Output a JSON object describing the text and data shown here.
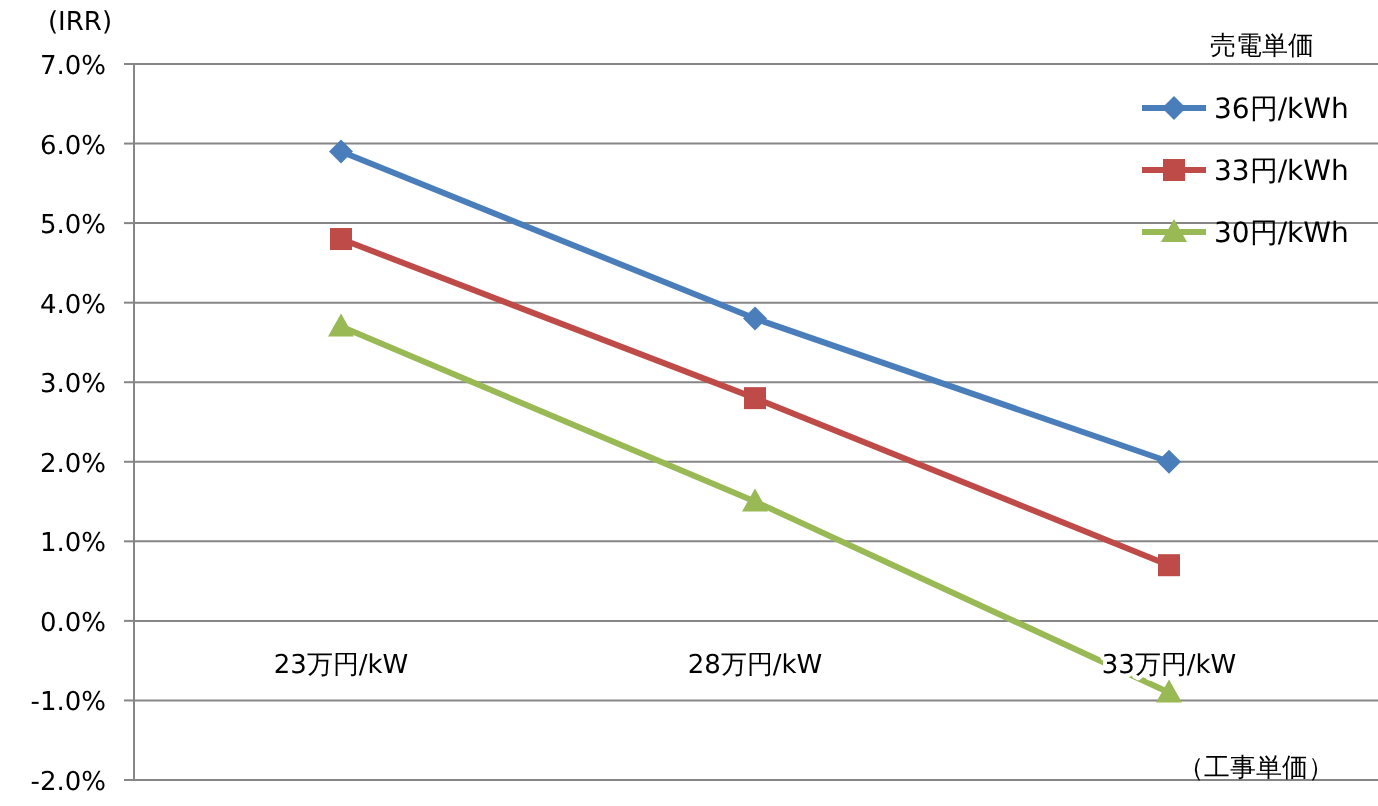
{
  "chart_data": {
    "type": "line",
    "ylabel": "(IRR)",
    "xlabel": "（工事単価）",
    "legend_title": "売電単価",
    "categories": [
      "23万円/kW",
      "28万円/kW",
      "33万円/kW"
    ],
    "series": [
      {
        "name": "36円/kWh",
        "color": "#4a7ebb",
        "marker": "diamond",
        "values": [
          5.9,
          3.8,
          2.0
        ]
      },
      {
        "name": "33円/kWh",
        "color": "#be4b48",
        "marker": "square",
        "values": [
          4.8,
          2.8,
          0.7
        ]
      },
      {
        "name": "30円/kWh",
        "color": "#98b954",
        "marker": "triangle",
        "values": [
          3.7,
          1.5,
          -0.9
        ]
      }
    ],
    "ylim": [
      -2,
      7
    ],
    "yticks": [
      {
        "value": -2,
        "label": "-2.0%"
      },
      {
        "value": -1,
        "label": "-1.0%"
      },
      {
        "value": 0,
        "label": "0.0%"
      },
      {
        "value": 1,
        "label": "1.0%"
      },
      {
        "value": 2,
        "label": "2.0%"
      },
      {
        "value": 3,
        "label": "3.0%"
      },
      {
        "value": 4,
        "label": "4.0%"
      },
      {
        "value": 5,
        "label": "5.0%"
      },
      {
        "value": 6,
        "label": "6.0%"
      },
      {
        "value": 7,
        "label": "7.0%"
      }
    ],
    "grid": "y",
    "legend": "top right"
  }
}
